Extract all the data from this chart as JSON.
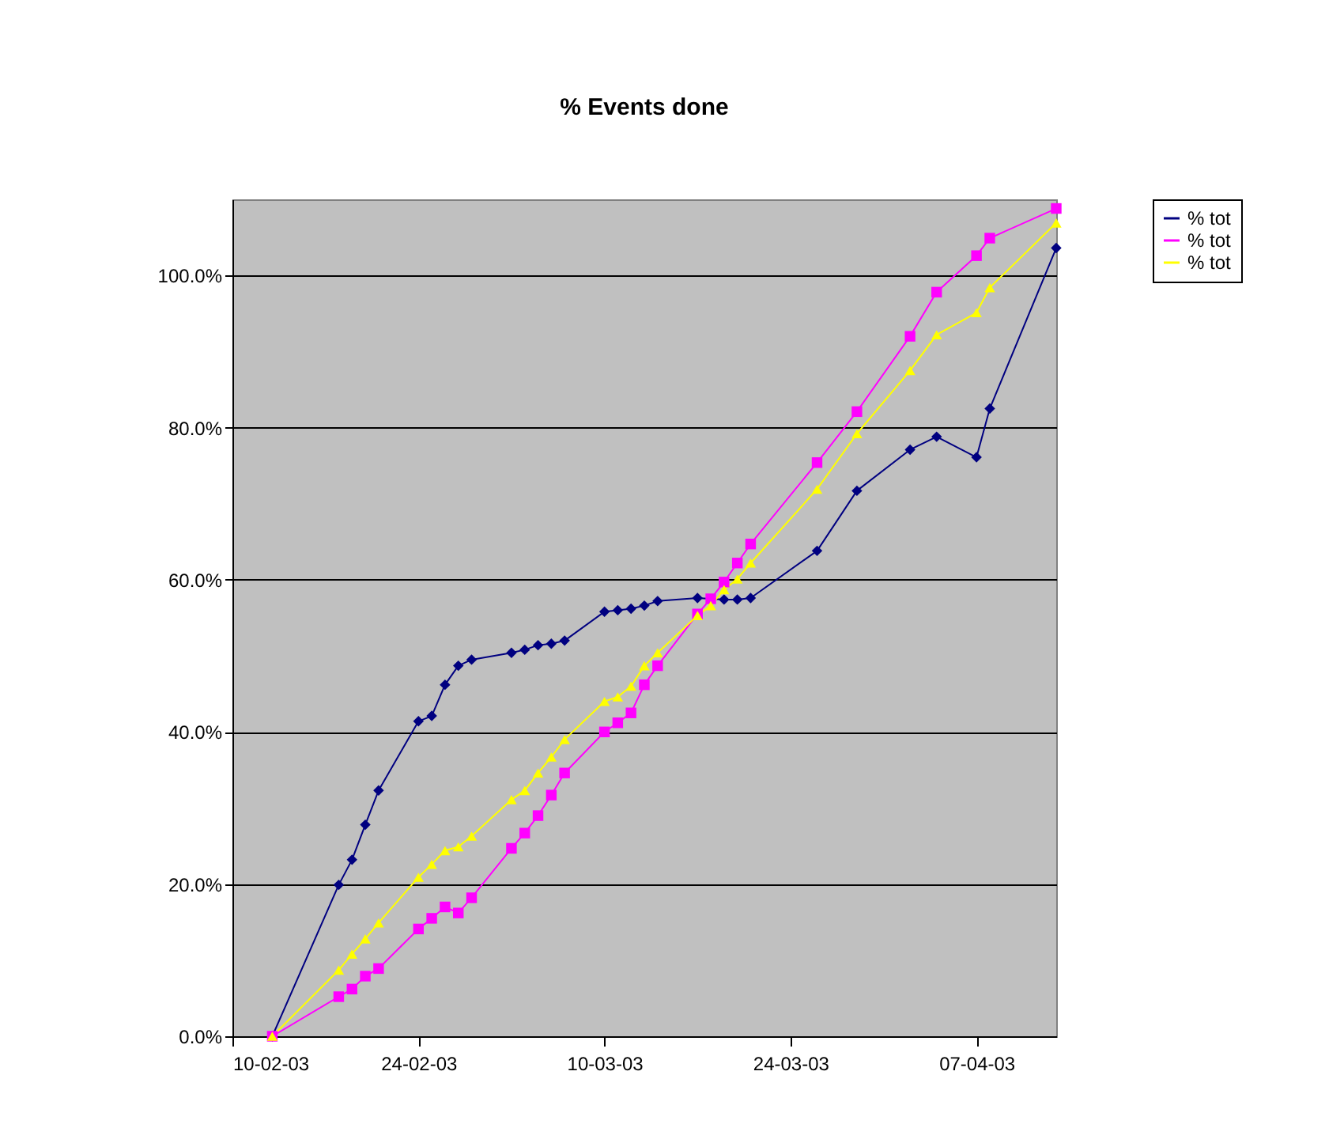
{
  "chart_data": {
    "type": "line",
    "title": "% Events done",
    "x": [
      "2003-02-13",
      "2003-02-18",
      "2003-02-19",
      "2003-02-20",
      "2003-02-21",
      "2003-02-24",
      "2003-02-25",
      "2003-02-26",
      "2003-02-27",
      "2003-02-28",
      "2003-03-03",
      "2003-03-04",
      "2003-03-05",
      "2003-03-06",
      "2003-03-07",
      "2003-03-10",
      "2003-03-11",
      "2003-03-12",
      "2003-03-13",
      "2003-03-14",
      "2003-03-17",
      "2003-03-18",
      "2003-03-19",
      "2003-03-20",
      "2003-03-21",
      "2003-03-26",
      "2003-03-29",
      "2003-04-02",
      "2003-04-04",
      "2003-04-07",
      "2003-04-08",
      "2003-04-13"
    ],
    "series": [
      {
        "name": "% tot",
        "color": "#000080",
        "marker": "diamond",
        "values": [
          0,
          19.9,
          23.2,
          27.8,
          32.3,
          41.4,
          42.1,
          46.2,
          48.7,
          49.5,
          50.4,
          50.8,
          51.4,
          51.6,
          52.0,
          55.8,
          56.0,
          56.2,
          56.6,
          57.2,
          57.6,
          null,
          57.4,
          57.4,
          57.6,
          63.8,
          71.7,
          77.1,
          78.8,
          76.1,
          82.5,
          103.6
        ]
      },
      {
        "name": "% tot",
        "color": "#ff00ff",
        "marker": "square",
        "values": [
          0,
          5.2,
          6.2,
          7.9,
          8.9,
          14.1,
          15.5,
          17.0,
          16.2,
          18.2,
          24.7,
          26.7,
          29.0,
          31.7,
          34.6,
          40.0,
          41.2,
          42.5,
          46.2,
          48.7,
          55.5,
          57.5,
          59.7,
          62.2,
          64.7,
          75.4,
          82.1,
          92.0,
          97.8,
          102.6,
          104.9,
          108.8
        ]
      },
      {
        "name": "% tot",
        "color": "#ffff00",
        "marker": "triangle",
        "values": [
          0,
          8.7,
          10.8,
          12.8,
          14.9,
          20.9,
          22.6,
          24.4,
          24.9,
          26.3,
          31.1,
          32.3,
          34.6,
          36.7,
          39.0,
          44.0,
          44.6,
          46.0,
          48.7,
          50.4,
          55.3,
          56.6,
          58.7,
          60.1,
          62.2,
          71.9,
          79.2,
          87.5,
          92.2,
          95.1,
          98.4,
          106.9
        ]
      }
    ],
    "xlim": [
      "2003-02-10",
      "2003-04-13"
    ],
    "xticks": [
      {
        "value": "2003-02-10",
        "label": "10-02-03"
      },
      {
        "value": "2003-02-24",
        "label": "24-02-03"
      },
      {
        "value": "2003-03-10",
        "label": "10-03-03"
      },
      {
        "value": "2003-03-24",
        "label": "24-03-03"
      },
      {
        "value": "2003-04-07",
        "label": "07-04-03"
      }
    ],
    "ylim": [
      0,
      110
    ],
    "yticks": [
      {
        "value": 0,
        "label": "0.0%"
      },
      {
        "value": 20,
        "label": "20.0%"
      },
      {
        "value": 40,
        "label": "40.0%"
      },
      {
        "value": 60,
        "label": "60.0%"
      },
      {
        "value": 80,
        "label": "80.0%"
      },
      {
        "value": 100,
        "label": "100.0%"
      }
    ],
    "grid": "y",
    "legend": "right",
    "line_style": "solid"
  }
}
